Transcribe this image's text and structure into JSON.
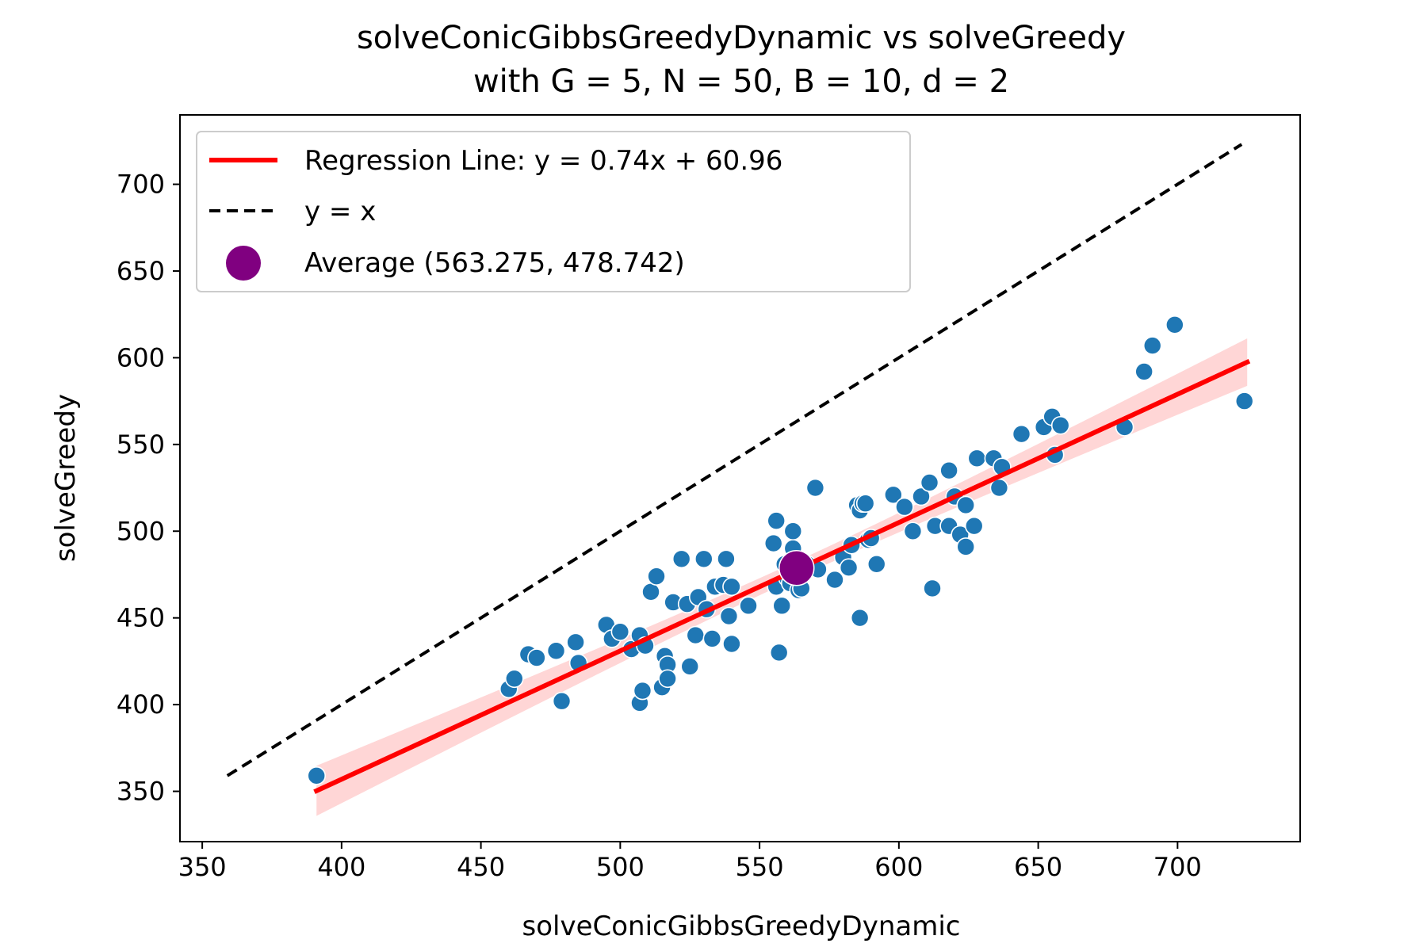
{
  "chart_data": {
    "type": "scatter",
    "title_line1": "solveConicGibbsGreedyDynamic vs solveGreedy",
    "title_line2": "with G = 5, N = 50, B = 10, d = 2",
    "xlabel": "solveConicGibbsGreedyDynamic",
    "ylabel": "solveGreedy",
    "xlim": [
      342,
      744
    ],
    "ylim": [
      321,
      740
    ],
    "xticks": [
      350,
      400,
      450,
      500,
      550,
      600,
      650,
      700
    ],
    "yticks": [
      350,
      400,
      450,
      500,
      550,
      600,
      650,
      700
    ],
    "grid": false,
    "legend_position": "top-left",
    "legend": {
      "regression": "Regression Line: y = 0.74x + 60.96",
      "identity": "y = x",
      "average": "Average (563.275, 478.742)"
    },
    "colors": {
      "points": "#1f77b4",
      "regression": "#ff0000",
      "confidence": "#ffc8c8",
      "identity": "#000000",
      "average": "#800080"
    },
    "regression": {
      "slope": 0.74,
      "intercept": 60.96,
      "x_range": [
        391,
        725
      ]
    },
    "identity_line": {
      "x_range": [
        359,
        723
      ]
    },
    "average": {
      "x": 563.275,
      "y": 478.742
    },
    "series": [
      {
        "points": [
          [
            391,
            359
          ],
          [
            460,
            409
          ],
          [
            462,
            415
          ],
          [
            467,
            429
          ],
          [
            470,
            427
          ],
          [
            477,
            431
          ],
          [
            479,
            402
          ],
          [
            484,
            436
          ],
          [
            485,
            424
          ],
          [
            495,
            446
          ],
          [
            497,
            438
          ],
          [
            500,
            442
          ],
          [
            504,
            432
          ],
          [
            507,
            440
          ],
          [
            507,
            401
          ],
          [
            508,
            408
          ],
          [
            509,
            434
          ],
          [
            511,
            465
          ],
          [
            513,
            474
          ],
          [
            515,
            410
          ],
          [
            516,
            428
          ],
          [
            517,
            423
          ],
          [
            517,
            415
          ],
          [
            519,
            459
          ],
          [
            522,
            484
          ],
          [
            524,
            458
          ],
          [
            525,
            422
          ],
          [
            527,
            440
          ],
          [
            528,
            462
          ],
          [
            530,
            484
          ],
          [
            531,
            455
          ],
          [
            533,
            438
          ],
          [
            534,
            468
          ],
          [
            537,
            469
          ],
          [
            538,
            484
          ],
          [
            539,
            451
          ],
          [
            540,
            435
          ],
          [
            540,
            468
          ],
          [
            546,
            457
          ],
          [
            555,
            493
          ],
          [
            556,
            506
          ],
          [
            556,
            468
          ],
          [
            557,
            430
          ],
          [
            558,
            457
          ],
          [
            559,
            481
          ],
          [
            560,
            473
          ],
          [
            561,
            470
          ],
          [
            562,
            500
          ],
          [
            562,
            490
          ],
          [
            563,
            474
          ],
          [
            564,
            466
          ],
          [
            565,
            467
          ],
          [
            567,
            481
          ],
          [
            570,
            525
          ],
          [
            571,
            478
          ],
          [
            577,
            472
          ],
          [
            580,
            485
          ],
          [
            582,
            479
          ],
          [
            583,
            492
          ],
          [
            585,
            515
          ],
          [
            586,
            512
          ],
          [
            586,
            450
          ],
          [
            587,
            516
          ],
          [
            588,
            516
          ],
          [
            589,
            495
          ],
          [
            590,
            496
          ],
          [
            592,
            481
          ],
          [
            598,
            521
          ],
          [
            602,
            514
          ],
          [
            605,
            500
          ],
          [
            608,
            520
          ],
          [
            611,
            528
          ],
          [
            612,
            467
          ],
          [
            613,
            503
          ],
          [
            618,
            535
          ],
          [
            618,
            503
          ],
          [
            620,
            520
          ],
          [
            622,
            498
          ],
          [
            624,
            515
          ],
          [
            624,
            491
          ],
          [
            627,
            503
          ],
          [
            628,
            542
          ],
          [
            634,
            542
          ],
          [
            636,
            525
          ],
          [
            637,
            537
          ],
          [
            644,
            556
          ],
          [
            652,
            560
          ],
          [
            655,
            566
          ],
          [
            656,
            544
          ],
          [
            658,
            561
          ],
          [
            681,
            560
          ],
          [
            688,
            592
          ],
          [
            691,
            607
          ],
          [
            699,
            619
          ],
          [
            724,
            575
          ]
        ]
      }
    ]
  }
}
